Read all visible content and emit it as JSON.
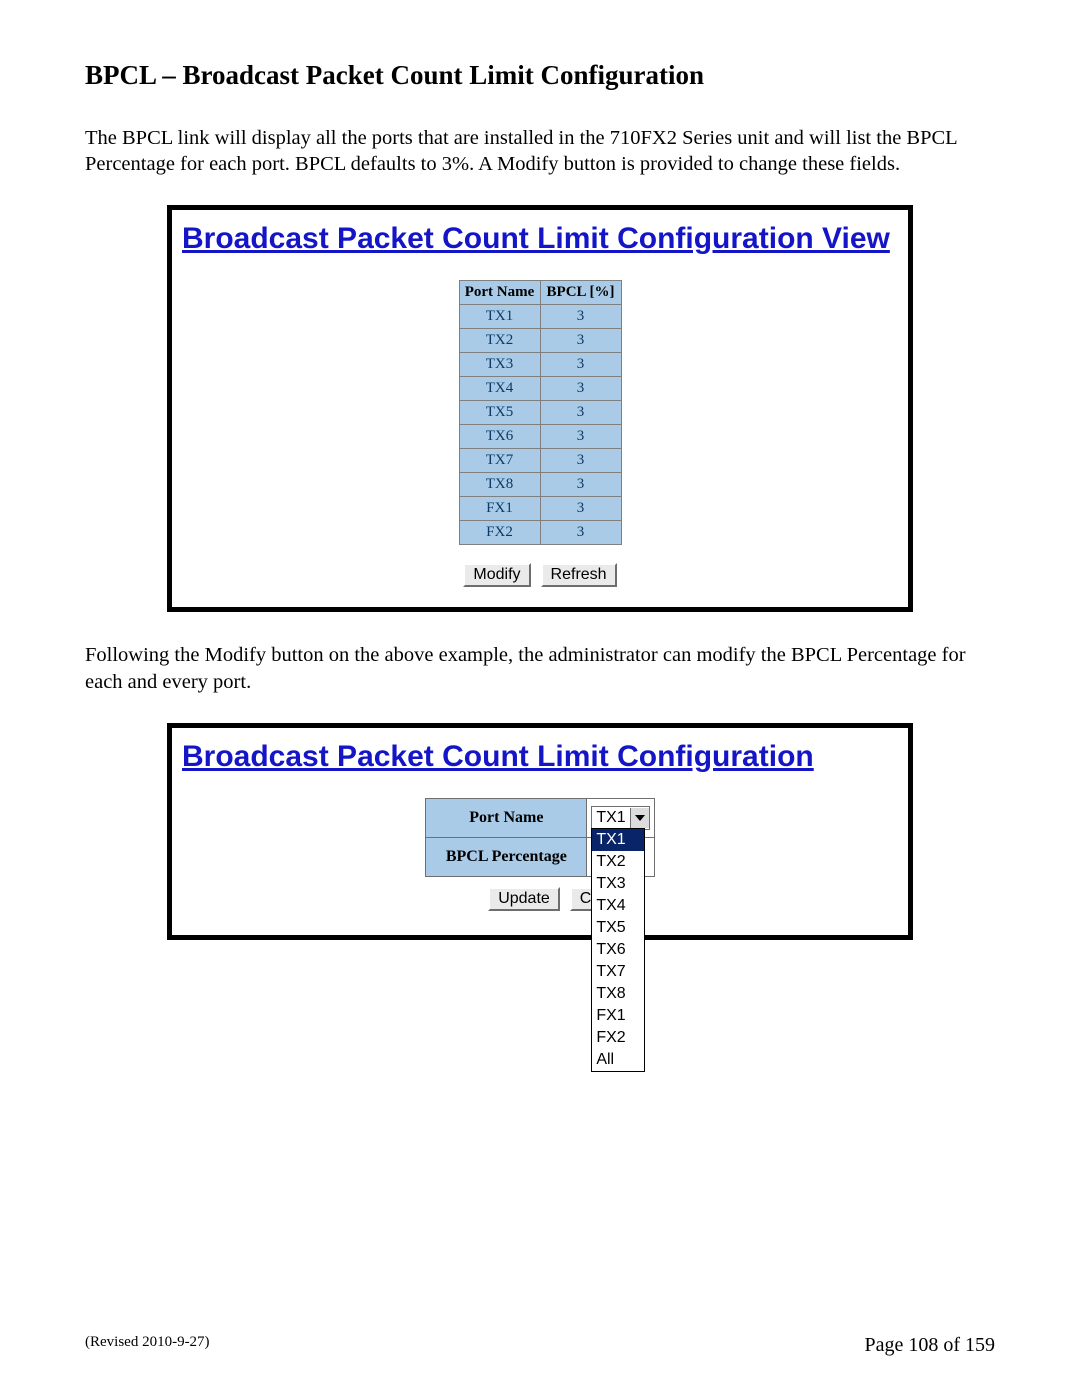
{
  "heading": "BPCL – Broadcast Packet Count Limit Configuration",
  "para1": "The BPCL link will display all the ports that are installed in the 710FX2 Series unit and will list the BPCL Percentage for each port.  BPCL defaults to 3%. A Modify button is provided to change these fields.",
  "para2": "Following the Modify button on the above example, the administrator can modify the BPCL Percentage for each and every port.",
  "screenshot1": {
    "title": "Broadcast Packet Count Limit Configuration View",
    "columns": [
      "Port Name",
      "BPCL [%]"
    ],
    "rows": [
      {
        "port": "TX1",
        "pct": "3"
      },
      {
        "port": "TX2",
        "pct": "3"
      },
      {
        "port": "TX3",
        "pct": "3"
      },
      {
        "port": "TX4",
        "pct": "3"
      },
      {
        "port": "TX5",
        "pct": "3"
      },
      {
        "port": "TX6",
        "pct": "3"
      },
      {
        "port": "TX7",
        "pct": "3"
      },
      {
        "port": "TX8",
        "pct": "3"
      },
      {
        "port": "FX1",
        "pct": "3"
      },
      {
        "port": "FX2",
        "pct": "3"
      }
    ],
    "buttons": {
      "modify": "Modify",
      "refresh": "Refresh"
    }
  },
  "screenshot2": {
    "title": "Broadcast Packet Count Limit Configuration",
    "form": {
      "port_name_label": "Port Name",
      "bpcl_pct_label": "BPCL Percentage",
      "selected": "TX1",
      "options": [
        "TX1",
        "TX2",
        "TX3",
        "TX4",
        "TX5",
        "TX6",
        "TX7",
        "TX8",
        "FX1",
        "FX2",
        "All"
      ]
    },
    "buttons": {
      "update": "Update",
      "cancel": "Cancel"
    }
  },
  "footer": {
    "revised": "(Revised 2010-9-27)",
    "page": "Page 108 of 159"
  },
  "colors": {
    "title_blue": "#1515c8",
    "cell_blue": "#a9cbe7",
    "cell_text": "#0b3a66",
    "border_gray": "#808080",
    "select_highlight": "#0a246a"
  }
}
